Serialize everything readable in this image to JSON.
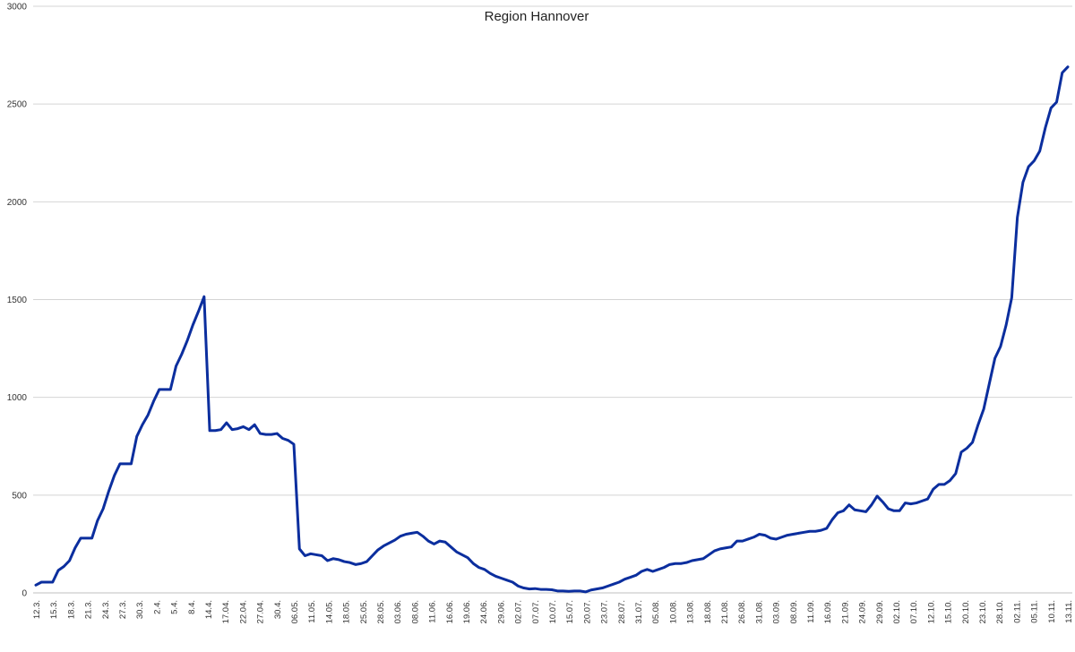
{
  "chart_data": {
    "type": "line",
    "title": "Region Hannover",
    "xlabel": "",
    "ylabel": "",
    "ylim": [
      0,
      3000
    ],
    "yticks": [
      0,
      500,
      1000,
      1500,
      2000,
      2500,
      3000
    ],
    "grid": true,
    "legend": "none",
    "line_color": "#0b2e9e",
    "xtick_labels": [
      "12.3.",
      "15.3.",
      "18.3.",
      "21.3.",
      "24.3.",
      "27.3.",
      "30.3.",
      "2.4.",
      "5.4.",
      "8.4.",
      "14.4.",
      "17.04.",
      "22.04.",
      "27.04.",
      "30.4.",
      "06.05.",
      "11.05.",
      "14.05.",
      "18.05.",
      "25.05.",
      "28.05.",
      "03.06.",
      "08.06.",
      "11.06.",
      "16.06.",
      "19.06.",
      "24.06.",
      "29.06.",
      "02.07.",
      "07.07.",
      "10.07.",
      "15.07.",
      "20.07.",
      "23.07.",
      "28.07.",
      "31.07.",
      "05.08.",
      "10.08.",
      "13.08.",
      "18.08.",
      "21.08.",
      "26.08.",
      "31.08.",
      "03.09.",
      "08.09.",
      "11.09.",
      "16.09.",
      "21.09.",
      "24.09.",
      "29.09.",
      "02.10.",
      "07.10.",
      "12.10.",
      "15.10.",
      "20.10.",
      "23.10.",
      "28.10.",
      "02.11.",
      "05.11.",
      "10.11.",
      "13.11."
    ],
    "values": [
      40,
      55,
      55,
      55,
      115,
      135,
      165,
      230,
      280,
      280,
      280,
      370,
      430,
      520,
      600,
      660,
      660,
      660,
      800,
      860,
      910,
      980,
      1040,
      1040,
      1040,
      1160,
      1220,
      1290,
      1370,
      1440,
      1515,
      830,
      830,
      835,
      870,
      835,
      840,
      850,
      835,
      860,
      815,
      810,
      810,
      815,
      790,
      780,
      760,
      225,
      190,
      200,
      195,
      190,
      165,
      175,
      170,
      160,
      155,
      145,
      150,
      160,
      190,
      220,
      240,
      255,
      270,
      290,
      300,
      305,
      310,
      290,
      265,
      250,
      265,
      260,
      235,
      210,
      195,
      180,
      150,
      130,
      120,
      100,
      85,
      75,
      65,
      55,
      35,
      25,
      20,
      22,
      18,
      18,
      16,
      10,
      10,
      8,
      10,
      10,
      5,
      15,
      20,
      25,
      35,
      45,
      55,
      70,
      80,
      90,
      110,
      120,
      110,
      120,
      130,
      145,
      150,
      150,
      155,
      165,
      170,
      175,
      195,
      215,
      225,
      230,
      235,
      265,
      265,
      275,
      285,
      300,
      295,
      280,
      275,
      285,
      295,
      300,
      305,
      310,
      315,
      315,
      320,
      330,
      375,
      410,
      420,
      450,
      425,
      420,
      415,
      450,
      495,
      465,
      430,
      420,
      420,
      460,
      455,
      460,
      470,
      480,
      530,
      555,
      555,
      575,
      610,
      720,
      740,
      770,
      860,
      940,
      1070,
      1200,
      1260,
      1370,
      1510,
      1920,
      2100,
      2180,
      2210,
      2260,
      2380,
      2480,
      2510,
      2660,
      2690
    ]
  }
}
